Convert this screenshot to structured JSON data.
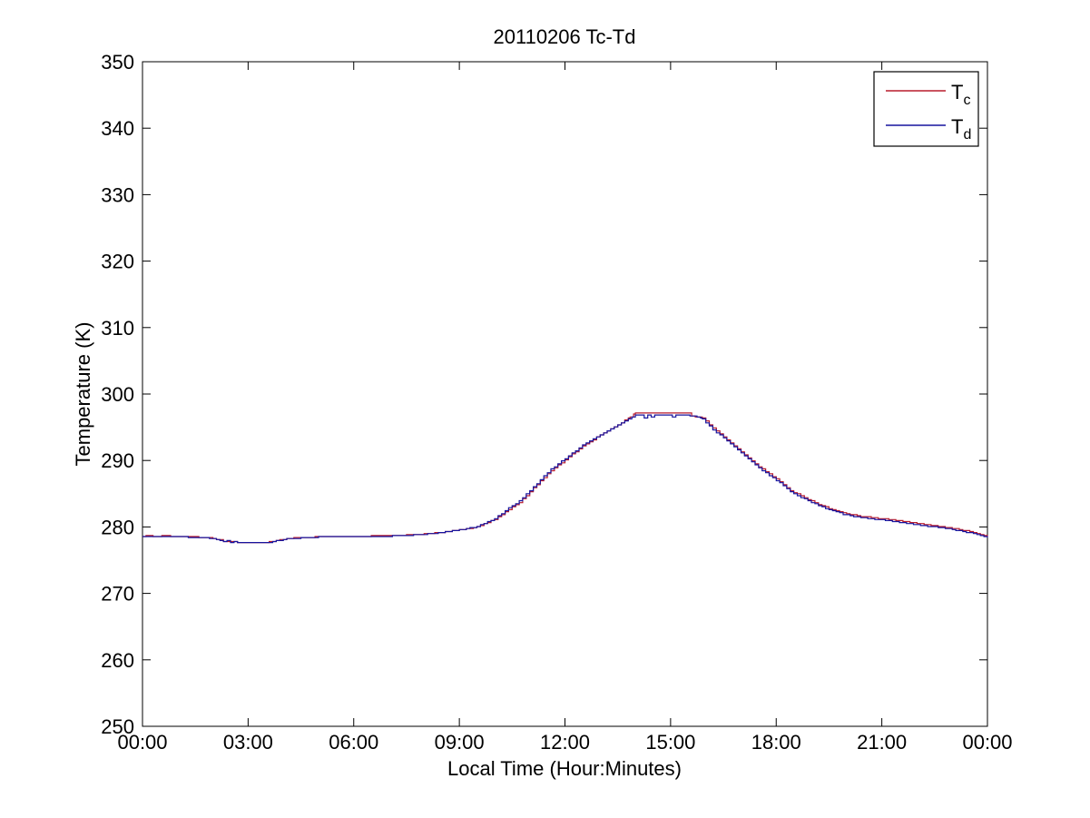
{
  "figure": {
    "background": "#ffffff",
    "axis_color": "#000000"
  },
  "chart_data": {
    "type": "line",
    "title": "20110206 Tc-Td",
    "xlabel": "Local Time (Hour:Minutes)",
    "ylabel": "Temperature (K)",
    "xlim_hours": [
      0,
      24
    ],
    "ylim": [
      250,
      350
    ],
    "grid": false,
    "x_ticks_hours": [
      0,
      3,
      6,
      9,
      12,
      15,
      18,
      21,
      24
    ],
    "x_tick_labels": [
      "00:00",
      "03:00",
      "06:00",
      "09:00",
      "12:00",
      "15:00",
      "18:00",
      "21:00",
      "00:00"
    ],
    "y_ticks": [
      250,
      260,
      270,
      280,
      290,
      300,
      310,
      320,
      330,
      340,
      350
    ],
    "y_tick_labels": [
      "250",
      "260",
      "270",
      "280",
      "290",
      "300",
      "310",
      "320",
      "330",
      "340",
      "350"
    ],
    "line_style": "staircase-step",
    "legend": {
      "position": "top-right",
      "entries": [
        {
          "label": "T",
          "sub": "c",
          "color": "#b81b2c"
        },
        {
          "label": "T",
          "sub": "d",
          "color": "#17149e"
        }
      ]
    },
    "series": [
      {
        "name": "Tc",
        "color": "#b81b2c",
        "points_hour_kelvin": [
          [
            0,
            278.55
          ],
          [
            0.2,
            278.7
          ],
          [
            0.35,
            278.55
          ],
          [
            0.7,
            278.7
          ],
          [
            0.85,
            278.55
          ],
          [
            1.5,
            278.5
          ],
          [
            1.9,
            278.35
          ],
          [
            2.2,
            278.05
          ],
          [
            2.3,
            277.8
          ],
          [
            3,
            277.65
          ],
          [
            3.5,
            277.65
          ],
          [
            3.8,
            277.95
          ],
          [
            4.1,
            278.25
          ],
          [
            4.5,
            278.4
          ],
          [
            5.1,
            278.55
          ],
          [
            6,
            278.6
          ],
          [
            7,
            278.65
          ],
          [
            7.6,
            278.8
          ],
          [
            8,
            278.95
          ],
          [
            8.4,
            279.15
          ],
          [
            8.7,
            279.35
          ],
          [
            9,
            279.55
          ],
          [
            9.5,
            280.0
          ],
          [
            10,
            281.1
          ],
          [
            10.3,
            282.3
          ],
          [
            10.7,
            283.7
          ],
          [
            11,
            285.3
          ],
          [
            11.3,
            286.9
          ],
          [
            11.6,
            288.5
          ],
          [
            12,
            290.1
          ],
          [
            12.5,
            292.2
          ],
          [
            13,
            293.8
          ],
          [
            13.5,
            295.3
          ],
          [
            13.85,
            296.6
          ],
          [
            14,
            297.1
          ],
          [
            15.55,
            297.1
          ],
          [
            15.6,
            296.7
          ],
          [
            15.9,
            296.4
          ],
          [
            16,
            295.9
          ],
          [
            16.2,
            294.9
          ],
          [
            16.4,
            294.0
          ],
          [
            16.6,
            293.1
          ],
          [
            16.9,
            291.8
          ],
          [
            17.1,
            290.9
          ],
          [
            17.5,
            289.1
          ],
          [
            18,
            287.2
          ],
          [
            18.4,
            285.5
          ],
          [
            18.8,
            284.4
          ],
          [
            19.2,
            283.4
          ],
          [
            19.5,
            282.8
          ],
          [
            19.9,
            282.1
          ],
          [
            20.4,
            281.6
          ],
          [
            20.9,
            281.3
          ],
          [
            21.4,
            281.0
          ],
          [
            22,
            280.5
          ],
          [
            22.5,
            280.2
          ],
          [
            23,
            279.8
          ],
          [
            23.5,
            279.3
          ],
          [
            24,
            278.6
          ]
        ]
      },
      {
        "name": "Td",
        "color": "#17149e",
        "points_hour_kelvin": [
          [
            0,
            278.5
          ],
          [
            0.5,
            278.5
          ],
          [
            1,
            278.5
          ],
          [
            1.5,
            278.45
          ],
          [
            1.9,
            278.3
          ],
          [
            2.2,
            278.0
          ],
          [
            2.3,
            277.75
          ],
          [
            2.4,
            277.9
          ],
          [
            2.5,
            277.65
          ],
          [
            2.6,
            277.8
          ],
          [
            2.7,
            277.65
          ],
          [
            3,
            277.6
          ],
          [
            3.5,
            277.6
          ],
          [
            3.8,
            277.9
          ],
          [
            4.1,
            278.2
          ],
          [
            4.5,
            278.35
          ],
          [
            5.1,
            278.5
          ],
          [
            6,
            278.55
          ],
          [
            7,
            278.6
          ],
          [
            7.6,
            278.75
          ],
          [
            8,
            278.9
          ],
          [
            8.4,
            279.1
          ],
          [
            8.7,
            279.3
          ],
          [
            9,
            279.55
          ],
          [
            9.5,
            280.05
          ],
          [
            10,
            281.2
          ],
          [
            10.3,
            282.5
          ],
          [
            10.7,
            283.9
          ],
          [
            11,
            285.5
          ],
          [
            11.3,
            287.1
          ],
          [
            11.6,
            288.7
          ],
          [
            12,
            290.3
          ],
          [
            12.5,
            292.3
          ],
          [
            13,
            293.9
          ],
          [
            13.5,
            295.4
          ],
          [
            13.8,
            296.3
          ],
          [
            14,
            296.8
          ],
          [
            14.2,
            296.85
          ],
          [
            14.25,
            296.45
          ],
          [
            14.35,
            296.85
          ],
          [
            14.45,
            296.5
          ],
          [
            14.55,
            296.85
          ],
          [
            15,
            296.85
          ],
          [
            15.05,
            296.5
          ],
          [
            15.15,
            296.85
          ],
          [
            15.45,
            296.8
          ],
          [
            15.75,
            296.6
          ],
          [
            15.9,
            296.2
          ],
          [
            16,
            295.7
          ],
          [
            16.2,
            294.6
          ],
          [
            16.4,
            293.8
          ],
          [
            16.6,
            292.9
          ],
          [
            16.9,
            291.6
          ],
          [
            17.1,
            290.7
          ],
          [
            17.5,
            288.9
          ],
          [
            18,
            287.0
          ],
          [
            18.4,
            285.3
          ],
          [
            18.8,
            284.2
          ],
          [
            19.2,
            283.2
          ],
          [
            19.5,
            282.6
          ],
          [
            19.9,
            281.9
          ],
          [
            20.4,
            281.4
          ],
          [
            20.9,
            281.1
          ],
          [
            21.4,
            280.8
          ],
          [
            22,
            280.3
          ],
          [
            22.5,
            280.0
          ],
          [
            23,
            279.6
          ],
          [
            23.5,
            279.1
          ],
          [
            24,
            278.4
          ]
        ]
      }
    ]
  }
}
